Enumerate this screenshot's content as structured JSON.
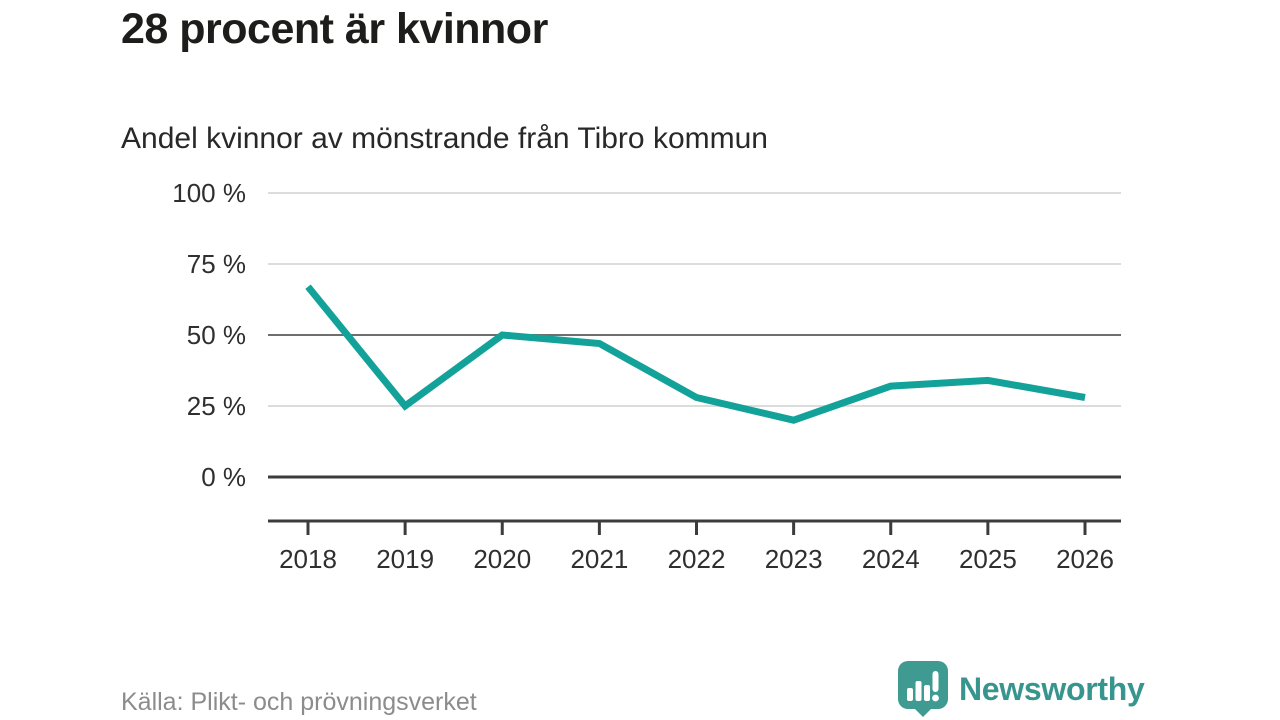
{
  "header": {
    "title": "28 procent är kvinnor",
    "subtitle": "Andel kvinnor av mönstrande från Tibro kommun"
  },
  "chart_data": {
    "type": "line",
    "title": "28 procent är kvinnor",
    "subtitle": "Andel kvinnor av mönstrande från Tibro kommun",
    "categories": [
      "2018",
      "2019",
      "2020",
      "2021",
      "2022",
      "2023",
      "2024",
      "2025",
      "2026"
    ],
    "series": [
      {
        "name": "Andel kvinnor av mönstrande",
        "values": [
          67,
          25,
          50,
          47,
          28,
          20,
          32,
          34,
          28
        ]
      }
    ],
    "unit": "%",
    "xlabel": "",
    "ylabel": "",
    "ylim": [
      0,
      100
    ],
    "yticks": [
      {
        "value": 0,
        "label": "0 %",
        "style": "baseline"
      },
      {
        "value": 25,
        "label": "25 %",
        "style": "light"
      },
      {
        "value": 50,
        "label": "50 %",
        "style": "emphasized"
      },
      {
        "value": 75,
        "label": "75 %",
        "style": "light"
      },
      {
        "value": 100,
        "label": "100 %",
        "style": "light"
      }
    ],
    "grid": "horizontal",
    "legend": "none",
    "line_color": "#13a29a"
  },
  "footer": {
    "source": "Källa: Plikt- och prövningsverket",
    "brand": "Newsworthy"
  },
  "colors": {
    "accent_teal": "#13a29a",
    "logo_teal": "#3f9a92",
    "grid_light": "#dcdcdc",
    "grid_emphasized": "#6e6e6e",
    "axis_dark": "#3c3c3c",
    "tick_text": "#2f2f2f",
    "text_dark": "#1d1d1b",
    "text_muted": "#8c8c8c"
  }
}
